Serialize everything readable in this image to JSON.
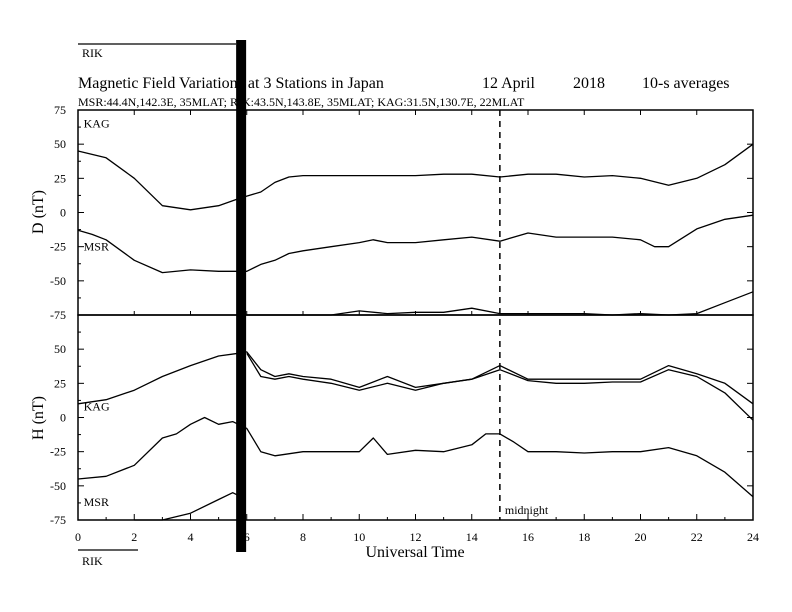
{
  "chart_data": {
    "type": "line",
    "title": "Magnetic Field Variations at 3 Stations in Japan",
    "date": "12  April",
    "year": "2018",
    "averaging": "10-s averages",
    "stations_line": "MSR:44.4N,142.3E, 35MLAT;  RIK:43.5N,143.8E, 35MLAT;  KAG:31.5N,130.7E, 22MLAT",
    "xlabel": "Universal Time",
    "xlim": [
      0,
      24
    ],
    "xticks": [
      "0",
      "2",
      "4",
      "6",
      "8",
      "10",
      "12",
      "14",
      "16",
      "18",
      "20",
      "22",
      "24"
    ],
    "midnight_label": "midnight",
    "midnight_x": 15,
    "gap_x": 5.8,
    "panels": [
      {
        "ylabel": "D (nT)",
        "ylim": [
          -75,
          75
        ],
        "yticks": [
          "75",
          "50",
          "25",
          "0",
          "-25",
          "-50",
          "-75"
        ],
        "series": [
          {
            "name": "KAG",
            "x": [
              0,
              1,
              2,
              3,
              4,
              5,
              5.7,
              6,
              6.5,
              7,
              7.5,
              8,
              9,
              10,
              11,
              12,
              13,
              14,
              15,
              16,
              17,
              18,
              19,
              20,
              21,
              22,
              23,
              24
            ],
            "y": [
              45,
              40,
              25,
              5,
              2,
              5,
              10,
              12,
              15,
              22,
              26,
              27,
              27,
              27,
              27,
              27,
              28,
              28,
              26,
              28,
              28,
              26,
              27,
              25,
              20,
              25,
              35,
              50
            ]
          },
          {
            "name": "MSR",
            "x": [
              0,
              0.5,
              1,
              2,
              3,
              4,
              5,
              5.7,
              6,
              6.5,
              7,
              7.5,
              8,
              9,
              10,
              10.5,
              11,
              12,
              13,
              14,
              15,
              16,
              17,
              18,
              19,
              20,
              20.5,
              21,
              22,
              23,
              24
            ],
            "y": [
              -13,
              -16,
              -20,
              -35,
              -44,
              -42,
              -43,
              -43,
              -43,
              -38,
              -35,
              -30,
              -28,
              -25,
              -22,
              -20,
              -22,
              -22,
              -20,
              -18,
              -21,
              -15,
              -18,
              -18,
              -18,
              -20,
              -25,
              -25,
              -12,
              -5,
              -2
            ]
          },
          {
            "name": "RIK",
            "x": [
              6,
              7,
              8,
              9,
              10,
              11,
              12,
              13,
              14,
              15,
              16,
              17,
              18,
              19,
              20,
              21,
              22,
              23,
              24
            ],
            "y": [
              -85,
              -80,
              -77,
              -76,
              -72,
              -74,
              -73,
              -73,
              -70,
              -74,
              -74,
              -74,
              -74,
              -75,
              -74,
              -78,
              -74,
              -66,
              -58
            ]
          }
        ]
      },
      {
        "ylabel": "H (nT)",
        "ylim": [
          -75,
          75
        ],
        "yticks": [
          "75",
          "50",
          "25",
          "0",
          "-25",
          "-50",
          "-75"
        ],
        "series": [
          {
            "name": "KAG",
            "x": [
              0,
              1,
              2,
              3,
              4,
              5,
              5.7,
              6,
              6.5,
              7,
              7.5,
              8,
              9,
              10,
              11,
              12,
              13,
              14,
              15,
              16,
              17,
              18,
              19,
              20,
              21,
              22,
              23,
              24
            ],
            "y": [
              10,
              13,
              20,
              30,
              38,
              45,
              47,
              48,
              35,
              30,
              32,
              30,
              28,
              22,
              30,
              22,
              25,
              28,
              35,
              27,
              25,
              25,
              26,
              26,
              35,
              30,
              18,
              -2
            ]
          },
          {
            "name": "RIK",
            "x": [
              6,
              6.5,
              7,
              7.5,
              8,
              9,
              10,
              11,
              12,
              13,
              14,
              15,
              16,
              17,
              18,
              19,
              20,
              21,
              22,
              23,
              24
            ],
            "y": [
              47,
              30,
              28,
              30,
              28,
              25,
              20,
              25,
              20,
              25,
              28,
              38,
              28,
              28,
              28,
              28,
              28,
              38,
              32,
              25,
              10
            ]
          },
          {
            "name": "MSR",
            "x": [
              0,
              1,
              2,
              3,
              3.5,
              4,
              4.5,
              5,
              5.5,
              5.7,
              6,
              6.5,
              7,
              8,
              9,
              10,
              10.5,
              11,
              12,
              13,
              14,
              14.5,
              15,
              15.5,
              16,
              17,
              18,
              19,
              20,
              21,
              22,
              23,
              24
            ],
            "y": [
              -45,
              -43,
              -35,
              -15,
              -12,
              -5,
              0,
              -5,
              -3,
              -5,
              -8,
              -25,
              -28,
              -25,
              -25,
              -25,
              -15,
              -27,
              -24,
              -25,
              -20,
              -12,
              -12,
              -18,
              -25,
              -25,
              -26,
              -25,
              -25,
              -22,
              -28,
              -40,
              -58
            ]
          },
          {
            "name": "RIK",
            "x": [
              2,
              3,
              4,
              5,
              5.5,
              5.7
            ],
            "y": [
              -95,
              -82,
              -70,
              -60,
              -55,
              -57
            ]
          }
        ]
      }
    ]
  }
}
